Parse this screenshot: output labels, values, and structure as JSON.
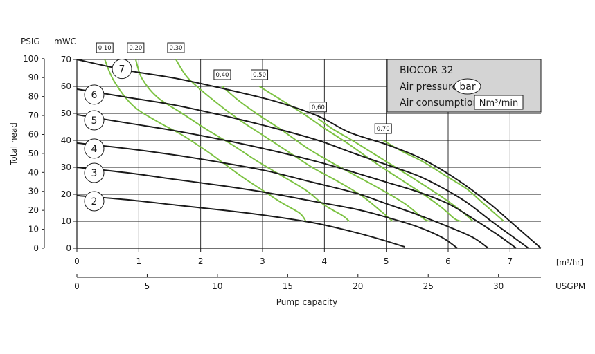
{
  "chart_data": {
    "type": "line",
    "xlabel": "Pump capacity",
    "ylabel": "Total head",
    "x_unit_top": "[m³/hr]",
    "x_unit_bottom": "USGPM",
    "y_unit_left": "PSIG",
    "y_unit_right": "mWC",
    "xlim": [
      0,
      7.5
    ],
    "ylim": [
      0,
      70
    ],
    "x_ticks": [
      0,
      1,
      2,
      3,
      4,
      5,
      6,
      7
    ],
    "x_ticks_usgpm": [
      0,
      5,
      10,
      15,
      20,
      25,
      30
    ],
    "y_ticks_mwc": [
      0,
      10,
      20,
      30,
      40,
      50,
      60,
      70
    ],
    "y_ticks_psig": [
      0,
      10,
      20,
      30,
      40,
      50,
      60,
      70,
      80,
      90,
      100
    ],
    "grid": true,
    "legend_box": {
      "title": "BIOCOR 32",
      "air_pressure_label": "Air pressure",
      "air_pressure_unit": "bar",
      "air_consumption_label": "Air consumption",
      "air_consumption_unit": "Nm³/min"
    },
    "series": [
      {
        "name": "7",
        "color": "#1a1a1a",
        "points": [
          [
            0,
            70
          ],
          [
            0.8,
            66
          ],
          [
            1.6,
            63
          ],
          [
            2.4,
            59
          ],
          [
            3.2,
            54.5
          ],
          [
            3.9,
            49
          ],
          [
            4.4,
            43
          ],
          [
            5.0,
            38.5
          ],
          [
            5.5,
            34
          ],
          [
            5.9,
            29
          ],
          [
            6.3,
            23
          ],
          [
            6.7,
            16
          ],
          [
            7.0,
            10
          ],
          [
            7.3,
            4
          ],
          [
            7.5,
            0
          ]
        ]
      },
      {
        "name": "6",
        "color": "#1a1a1a",
        "points": [
          [
            0,
            59
          ],
          [
            0.8,
            56
          ],
          [
            1.6,
            53
          ],
          [
            2.4,
            49
          ],
          [
            3.2,
            44.5
          ],
          [
            3.9,
            40
          ],
          [
            4.5,
            35
          ],
          [
            5.0,
            31
          ],
          [
            5.5,
            27
          ],
          [
            5.9,
            22.5
          ],
          [
            6.3,
            17
          ],
          [
            6.7,
            10
          ],
          [
            7.0,
            5
          ],
          [
            7.3,
            0
          ]
        ]
      },
      {
        "name": "5",
        "color": "#1a1a1a",
        "points": [
          [
            0,
            49.5
          ],
          [
            0.8,
            46.5
          ],
          [
            1.6,
            43.5
          ],
          [
            2.4,
            40
          ],
          [
            3.2,
            36
          ],
          [
            3.9,
            32
          ],
          [
            4.5,
            28
          ],
          [
            5.0,
            24.5
          ],
          [
            5.5,
            21
          ],
          [
            6.0,
            16.5
          ],
          [
            6.4,
            11
          ],
          [
            6.8,
            5
          ],
          [
            7.1,
            0
          ]
        ]
      },
      {
        "name": "4",
        "color": "#1a1a1a",
        "points": [
          [
            0,
            39
          ],
          [
            0.8,
            37
          ],
          [
            1.6,
            34.5
          ],
          [
            2.4,
            31.5
          ],
          [
            3.1,
            28.5
          ],
          [
            3.8,
            24.5
          ],
          [
            4.5,
            20.5
          ],
          [
            5.0,
            16.5
          ],
          [
            5.5,
            12.5
          ],
          [
            6.0,
            8
          ],
          [
            6.4,
            4
          ],
          [
            6.65,
            0
          ]
        ]
      },
      {
        "name": "3",
        "color": "#1a1a1a",
        "points": [
          [
            0,
            30
          ],
          [
            0.8,
            28
          ],
          [
            1.6,
            25.5
          ],
          [
            2.4,
            23
          ],
          [
            3.1,
            20.5
          ],
          [
            3.8,
            17.5
          ],
          [
            4.5,
            14.5
          ],
          [
            5.0,
            11.5
          ],
          [
            5.5,
            8
          ],
          [
            5.9,
            4
          ],
          [
            6.15,
            0
          ]
        ]
      },
      {
        "name": "2",
        "color": "#1a1a1a",
        "points": [
          [
            0,
            19.5
          ],
          [
            0.8,
            18
          ],
          [
            1.6,
            16
          ],
          [
            2.4,
            14
          ],
          [
            3.1,
            12
          ],
          [
            3.8,
            9.5
          ],
          [
            4.3,
            7
          ],
          [
            4.8,
            4
          ],
          [
            5.3,
            0.5
          ]
        ]
      },
      {
        "name": "0,10",
        "color": "#7cc242",
        "points": [
          [
            0.45,
            70
          ],
          [
            0.6,
            62
          ],
          [
            0.9,
            53
          ],
          [
            1.3,
            47
          ],
          [
            1.7,
            42
          ],
          [
            2.1,
            36
          ],
          [
            2.4,
            31
          ],
          [
            2.7,
            26
          ],
          [
            3.0,
            21.5
          ],
          [
            3.3,
            17
          ],
          [
            3.6,
            13
          ],
          [
            3.7,
            10
          ]
        ]
      },
      {
        "name": "0,20",
        "color": "#7cc242",
        "points": [
          [
            0.95,
            70
          ],
          [
            1.05,
            63
          ],
          [
            1.3,
            56
          ],
          [
            1.7,
            50
          ],
          [
            2.1,
            44
          ],
          [
            2.5,
            38.5
          ],
          [
            2.9,
            32.5
          ],
          [
            3.3,
            27
          ],
          [
            3.7,
            21.5
          ],
          [
            4.0,
            16
          ],
          [
            4.3,
            12
          ],
          [
            4.4,
            10
          ]
        ]
      },
      {
        "name": "0,30",
        "color": "#7cc242",
        "points": [
          [
            1.6,
            70
          ],
          [
            1.8,
            63
          ],
          [
            2.2,
            55
          ],
          [
            2.6,
            48
          ],
          [
            3.0,
            42
          ],
          [
            3.4,
            36
          ],
          [
            3.8,
            30
          ],
          [
            4.2,
            25
          ],
          [
            4.6,
            19.5
          ],
          [
            4.9,
            14
          ],
          [
            5.1,
            10
          ]
        ]
      },
      {
        "name": "0,40",
        "color": "#7cc242",
        "points": [
          [
            2.35,
            60
          ],
          [
            2.6,
            55
          ],
          [
            2.9,
            50
          ],
          [
            3.3,
            44
          ],
          [
            3.7,
            37.5
          ],
          [
            4.1,
            32
          ],
          [
            4.5,
            27
          ],
          [
            4.9,
            22
          ],
          [
            5.3,
            16.5
          ],
          [
            5.6,
            11
          ],
          [
            5.7,
            10
          ]
        ]
      },
      {
        "name": "0,50",
        "color": "#7cc242",
        "points": [
          [
            2.95,
            60
          ],
          [
            3.3,
            55
          ],
          [
            3.65,
            50
          ],
          [
            4.0,
            44.5
          ],
          [
            4.4,
            38.5
          ],
          [
            4.8,
            32
          ],
          [
            5.2,
            26
          ],
          [
            5.6,
            20
          ],
          [
            5.9,
            15
          ],
          [
            6.1,
            11
          ],
          [
            6.2,
            10
          ]
        ]
      },
      {
        "name": "0,60",
        "color": "#7cc242",
        "points": [
          [
            3.9,
            48
          ],
          [
            4.15,
            44
          ],
          [
            4.45,
            40
          ],
          [
            4.8,
            35
          ],
          [
            5.15,
            30
          ],
          [
            5.5,
            25
          ],
          [
            5.9,
            19
          ],
          [
            6.2,
            14
          ],
          [
            6.4,
            10
          ]
        ]
      },
      {
        "name": "0,70",
        "color": "#7cc242",
        "points": [
          [
            4.95,
            40
          ],
          [
            5.25,
            36
          ],
          [
            5.6,
            32
          ],
          [
            5.95,
            27
          ],
          [
            6.3,
            22
          ],
          [
            6.55,
            17
          ],
          [
            6.8,
            12
          ],
          [
            6.9,
            10
          ]
        ]
      }
    ]
  }
}
